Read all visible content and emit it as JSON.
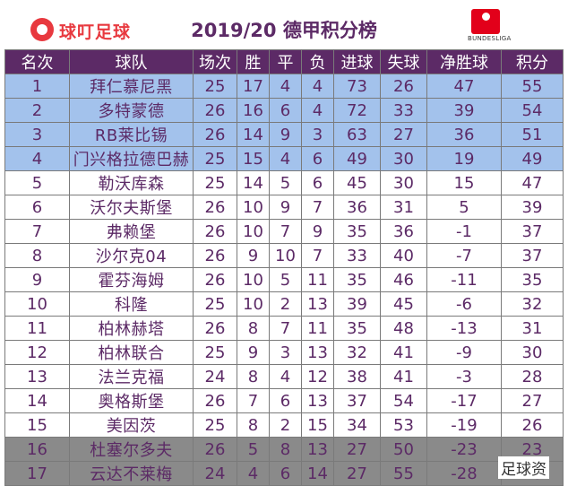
{
  "header": {
    "logo_text": "球叮足球",
    "title": "2019/20 德甲积分榜",
    "league_logo_text": "BUNDESLIGA"
  },
  "columns": [
    "名次",
    "球队",
    "场次",
    "胜",
    "平",
    "负",
    "进球",
    "失球",
    "净胜球",
    "积分"
  ],
  "rows": [
    {
      "rank": "1",
      "team": "拜仁慕尼黑",
      "played": "25",
      "won": "17",
      "drawn": "4",
      "lost": "4",
      "gf": "73",
      "ga": "26",
      "gd": "47",
      "pts": "55"
    },
    {
      "rank": "2",
      "team": "多特蒙德",
      "played": "26",
      "won": "16",
      "drawn": "6",
      "lost": "4",
      "gf": "72",
      "ga": "33",
      "gd": "39",
      "pts": "54"
    },
    {
      "rank": "3",
      "team": "RB莱比锡",
      "played": "26",
      "won": "14",
      "drawn": "9",
      "lost": "3",
      "gf": "63",
      "ga": "27",
      "gd": "36",
      "pts": "51"
    },
    {
      "rank": "4",
      "team": "门兴格拉德巴赫",
      "played": "25",
      "won": "15",
      "drawn": "4",
      "lost": "6",
      "gf": "49",
      "ga": "30",
      "gd": "19",
      "pts": "49"
    },
    {
      "rank": "5",
      "team": "勒沃库森",
      "played": "25",
      "won": "14",
      "drawn": "5",
      "lost": "6",
      "gf": "45",
      "ga": "30",
      "gd": "15",
      "pts": "47"
    },
    {
      "rank": "6",
      "team": "沃尔夫斯堡",
      "played": "26",
      "won": "10",
      "drawn": "9",
      "lost": "7",
      "gf": "36",
      "ga": "31",
      "gd": "5",
      "pts": "39"
    },
    {
      "rank": "7",
      "team": "弗赖堡",
      "played": "26",
      "won": "10",
      "drawn": "7",
      "lost": "9",
      "gf": "35",
      "ga": "36",
      "gd": "-1",
      "pts": "37"
    },
    {
      "rank": "8",
      "team": "沙尔克04",
      "played": "26",
      "won": "9",
      "drawn": "10",
      "lost": "7",
      "gf": "33",
      "ga": "40",
      "gd": "-7",
      "pts": "37"
    },
    {
      "rank": "9",
      "team": "霍芬海姆",
      "played": "26",
      "won": "10",
      "drawn": "5",
      "lost": "11",
      "gf": "35",
      "ga": "46",
      "gd": "-11",
      "pts": "35"
    },
    {
      "rank": "10",
      "team": "科隆",
      "played": "25",
      "won": "10",
      "drawn": "2",
      "lost": "13",
      "gf": "39",
      "ga": "45",
      "gd": "-6",
      "pts": "32"
    },
    {
      "rank": "11",
      "team": "柏林赫塔",
      "played": "26",
      "won": "8",
      "drawn": "7",
      "lost": "11",
      "gf": "35",
      "ga": "48",
      "gd": "-13",
      "pts": "31"
    },
    {
      "rank": "12",
      "team": "柏林联合",
      "played": "25",
      "won": "9",
      "drawn": "3",
      "lost": "13",
      "gf": "32",
      "ga": "41",
      "gd": "-9",
      "pts": "30"
    },
    {
      "rank": "13",
      "team": "法兰克福",
      "played": "24",
      "won": "8",
      "drawn": "4",
      "lost": "12",
      "gf": "38",
      "ga": "41",
      "gd": "-3",
      "pts": "28"
    },
    {
      "rank": "14",
      "team": "奥格斯堡",
      "played": "26",
      "won": "7",
      "drawn": "6",
      "lost": "13",
      "gf": "37",
      "ga": "54",
      "gd": "-17",
      "pts": "27"
    },
    {
      "rank": "15",
      "team": "美因茨",
      "played": "25",
      "won": "8",
      "drawn": "2",
      "lost": "15",
      "gf": "34",
      "ga": "53",
      "gd": "-19",
      "pts": "26"
    },
    {
      "rank": "16",
      "team": "杜塞尔多夫",
      "played": "26",
      "won": "5",
      "drawn": "8",
      "lost": "13",
      "gf": "27",
      "ga": "50",
      "gd": "-23",
      "pts": "23"
    },
    {
      "rank": "17",
      "team": "云达不莱梅",
      "played": "24",
      "won": "4",
      "drawn": "6",
      "lost": "14",
      "gf": "27",
      "ga": "55",
      "gd": "-28",
      "pts": "18"
    }
  ],
  "watermark": "足球资",
  "colors": {
    "header_bg": "#5c2a66",
    "text": "#5c2a66",
    "top_rows": "#a3c2ec",
    "relegation_rows": "#8a8a8a",
    "logo_red": "#e8393f"
  }
}
